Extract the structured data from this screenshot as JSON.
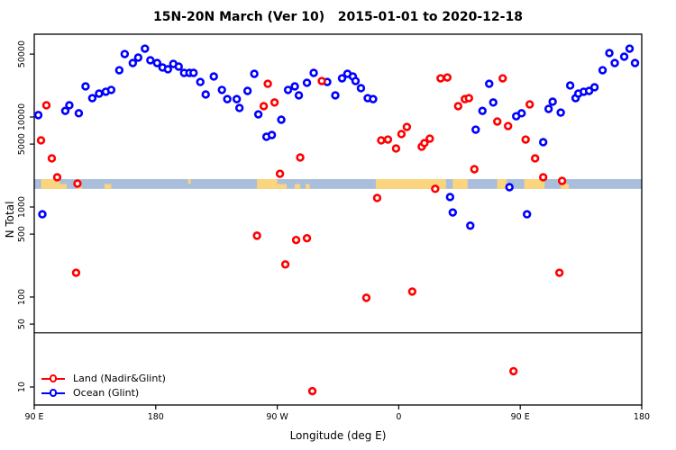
{
  "title": "15N-20N March (Ver 10)   2015-01-01 to 2020-12-18",
  "axes": {
    "x_label": "Longitude (deg E)",
    "y_label": "N Total",
    "x_note": "longitude axis unwrapped in deg E: 90..540 (270 = 90 W, 360 = 0, 450 = 90 E, 540 = 180)",
    "x_range": [
      90,
      540
    ],
    "x_ticks": [
      {
        "value": 90,
        "label": "90 E"
      },
      {
        "value": 180,
        "label": "180"
      },
      {
        "value": 270,
        "label": "90 W"
      },
      {
        "value": 360,
        "label": "0"
      },
      {
        "value": 450,
        "label": "90 E"
      },
      {
        "value": 540,
        "label": "180"
      }
    ],
    "y_scale": "log",
    "y_range": [
      6,
      80000
    ],
    "y_ticks": [
      {
        "value": 10,
        "label": "10"
      },
      {
        "value": 50,
        "label": "50"
      },
      {
        "value": 100,
        "label": "100"
      },
      {
        "value": 500,
        "label": "500"
      },
      {
        "value": 1000,
        "label": "1000"
      },
      {
        "value": 5000,
        "label": "5000"
      },
      {
        "value": 10000,
        "label": "10000"
      },
      {
        "value": 50000,
        "label": "50000"
      }
    ]
  },
  "legend": [
    {
      "label": "Land (Nadir&Glint)",
      "color": "#FF0000"
    },
    {
      "label": "Ocean (Glint)",
      "color": "#0000FF"
    }
  ],
  "reference_line": {
    "value": 40,
    "color": "#000000"
  },
  "map_band": {
    "description": "coastline strip for 15N-20N latitude band drawn across the plot",
    "n_range": [
      1590,
      2040
    ],
    "ocean_color": "#A9BEDB",
    "land_color": "#FBD47E",
    "land_segments": [
      {
        "from": 95,
        "to": 109,
        "part": "full"
      },
      {
        "from": 109,
        "to": 114,
        "part": "bottom"
      },
      {
        "from": 121,
        "to": 125,
        "part": "bottom"
      },
      {
        "from": 142,
        "to": 147,
        "part": "bottom"
      },
      {
        "from": 204,
        "to": 206,
        "part": "top"
      },
      {
        "from": 255,
        "to": 270,
        "part": "full"
      },
      {
        "from": 270,
        "to": 277,
        "part": "bottom"
      },
      {
        "from": 283,
        "to": 287,
        "part": "bottom"
      },
      {
        "from": 291,
        "to": 294,
        "part": "bottom"
      },
      {
        "from": 343,
        "to": 395,
        "part": "full"
      },
      {
        "from": 400,
        "to": 411,
        "part": "full"
      },
      {
        "from": 433,
        "to": 440,
        "part": "full"
      },
      {
        "from": 453,
        "to": 468,
        "part": "full"
      },
      {
        "from": 480,
        "to": 486,
        "part": "bottom"
      }
    ]
  },
  "chart_data": {
    "type": "scatter",
    "title": "15N-20N March (Ver 10)   2015-01-01 to 2020-12-18",
    "xlabel": "Longitude (deg E)",
    "ylabel": "N Total",
    "legend_position": "bottom-left-inside",
    "grid": false,
    "series": [
      {
        "name": "Ocean (Glint)",
        "color": "#0000FF",
        "points": [
          [
            93,
            10500
          ],
          [
            113,
            11700
          ],
          [
            116,
            13500
          ],
          [
            123,
            11000
          ],
          [
            128,
            21900
          ],
          [
            133,
            16200
          ],
          [
            138,
            18200
          ],
          [
            143,
            19100
          ],
          [
            147,
            20000
          ],
          [
            153,
            33100
          ],
          [
            157,
            50100
          ],
          [
            163,
            39800
          ],
          [
            167,
            45700
          ],
          [
            172,
            57500
          ],
          [
            176,
            42700
          ],
          [
            181,
            39800
          ],
          [
            185,
            35500
          ],
          [
            189,
            33900
          ],
          [
            193,
            38900
          ],
          [
            197,
            36300
          ],
          [
            201,
            30900
          ],
          [
            205,
            30900
          ],
          [
            208,
            30900
          ],
          [
            213,
            24500
          ],
          [
            217,
            17800
          ],
          [
            223,
            28200
          ],
          [
            229,
            20000
          ],
          [
            233,
            15800
          ],
          [
            240,
            15800
          ],
          [
            242,
            12600
          ],
          [
            248,
            19500
          ],
          [
            253,
            30200
          ],
          [
            256,
            10700
          ],
          [
            262,
            6030
          ],
          [
            266,
            6310
          ],
          [
            273,
            9330
          ],
          [
            278,
            20000
          ],
          [
            283,
            21900
          ],
          [
            286,
            17400
          ],
          [
            292,
            24000
          ],
          [
            297,
            30900
          ],
          [
            307,
            24500
          ],
          [
            313,
            17400
          ],
          [
            318,
            26900
          ],
          [
            322,
            30200
          ],
          [
            326,
            28200
          ],
          [
            328,
            25100
          ],
          [
            332,
            20900
          ],
          [
            337,
            16200
          ],
          [
            341,
            15800
          ],
          [
            96,
            830
          ],
          [
            398,
            1290
          ],
          [
            400,
            870
          ],
          [
            413,
            620
          ],
          [
            417,
            7240
          ],
          [
            422,
            11700
          ],
          [
            427,
            23400
          ],
          [
            430,
            14500
          ],
          [
            442,
            1660
          ],
          [
            447,
            10200
          ],
          [
            451,
            11000
          ],
          [
            455,
            830
          ],
          [
            467,
            5250
          ],
          [
            471,
            12300
          ],
          [
            474,
            14800
          ],
          [
            480,
            11200
          ],
          [
            487,
            22400
          ],
          [
            491,
            16200
          ],
          [
            493,
            18200
          ],
          [
            497,
            19100
          ],
          [
            501,
            19500
          ],
          [
            505,
            21400
          ],
          [
            511,
            33100
          ],
          [
            516,
            51300
          ],
          [
            520,
            39800
          ],
          [
            527,
            46800
          ],
          [
            531,
            57500
          ],
          [
            535,
            39800
          ]
        ]
      },
      {
        "name": "Land (Nadir&Glint)",
        "color": "#FF0000",
        "points": [
          [
            99,
            13500
          ],
          [
            95,
            5500
          ],
          [
            103,
            3470
          ],
          [
            107,
            2140
          ],
          [
            122,
            1820
          ],
          [
            121,
            186
          ],
          [
            255,
            480
          ],
          [
            260,
            13200
          ],
          [
            263,
            23400
          ],
          [
            268,
            14500
          ],
          [
            272,
            2340
          ],
          [
            276,
            230
          ],
          [
            284,
            430
          ],
          [
            287,
            3550
          ],
          [
            292,
            450
          ],
          [
            296,
            9
          ],
          [
            303,
            25100
          ],
          [
            336,
            98
          ],
          [
            344,
            1260
          ],
          [
            347,
            5500
          ],
          [
            352,
            5620
          ],
          [
            358,
            4470
          ],
          [
            362,
            6460
          ],
          [
            366,
            7760
          ],
          [
            370,
            115
          ],
          [
            377,
            4680
          ],
          [
            379,
            5130
          ],
          [
            383,
            5750
          ],
          [
            387,
            1590
          ],
          [
            391,
            26900
          ],
          [
            396,
            27500
          ],
          [
            404,
            13200
          ],
          [
            409,
            15800
          ],
          [
            412,
            16200
          ],
          [
            416,
            2630
          ],
          [
            433,
            8910
          ],
          [
            437,
            26900
          ],
          [
            441,
            7940
          ],
          [
            445,
            15
          ],
          [
            454,
            5620
          ],
          [
            457,
            13800
          ],
          [
            461,
            3470
          ],
          [
            467,
            2140
          ],
          [
            479,
            186
          ],
          [
            481,
            1950
          ]
        ]
      }
    ]
  }
}
